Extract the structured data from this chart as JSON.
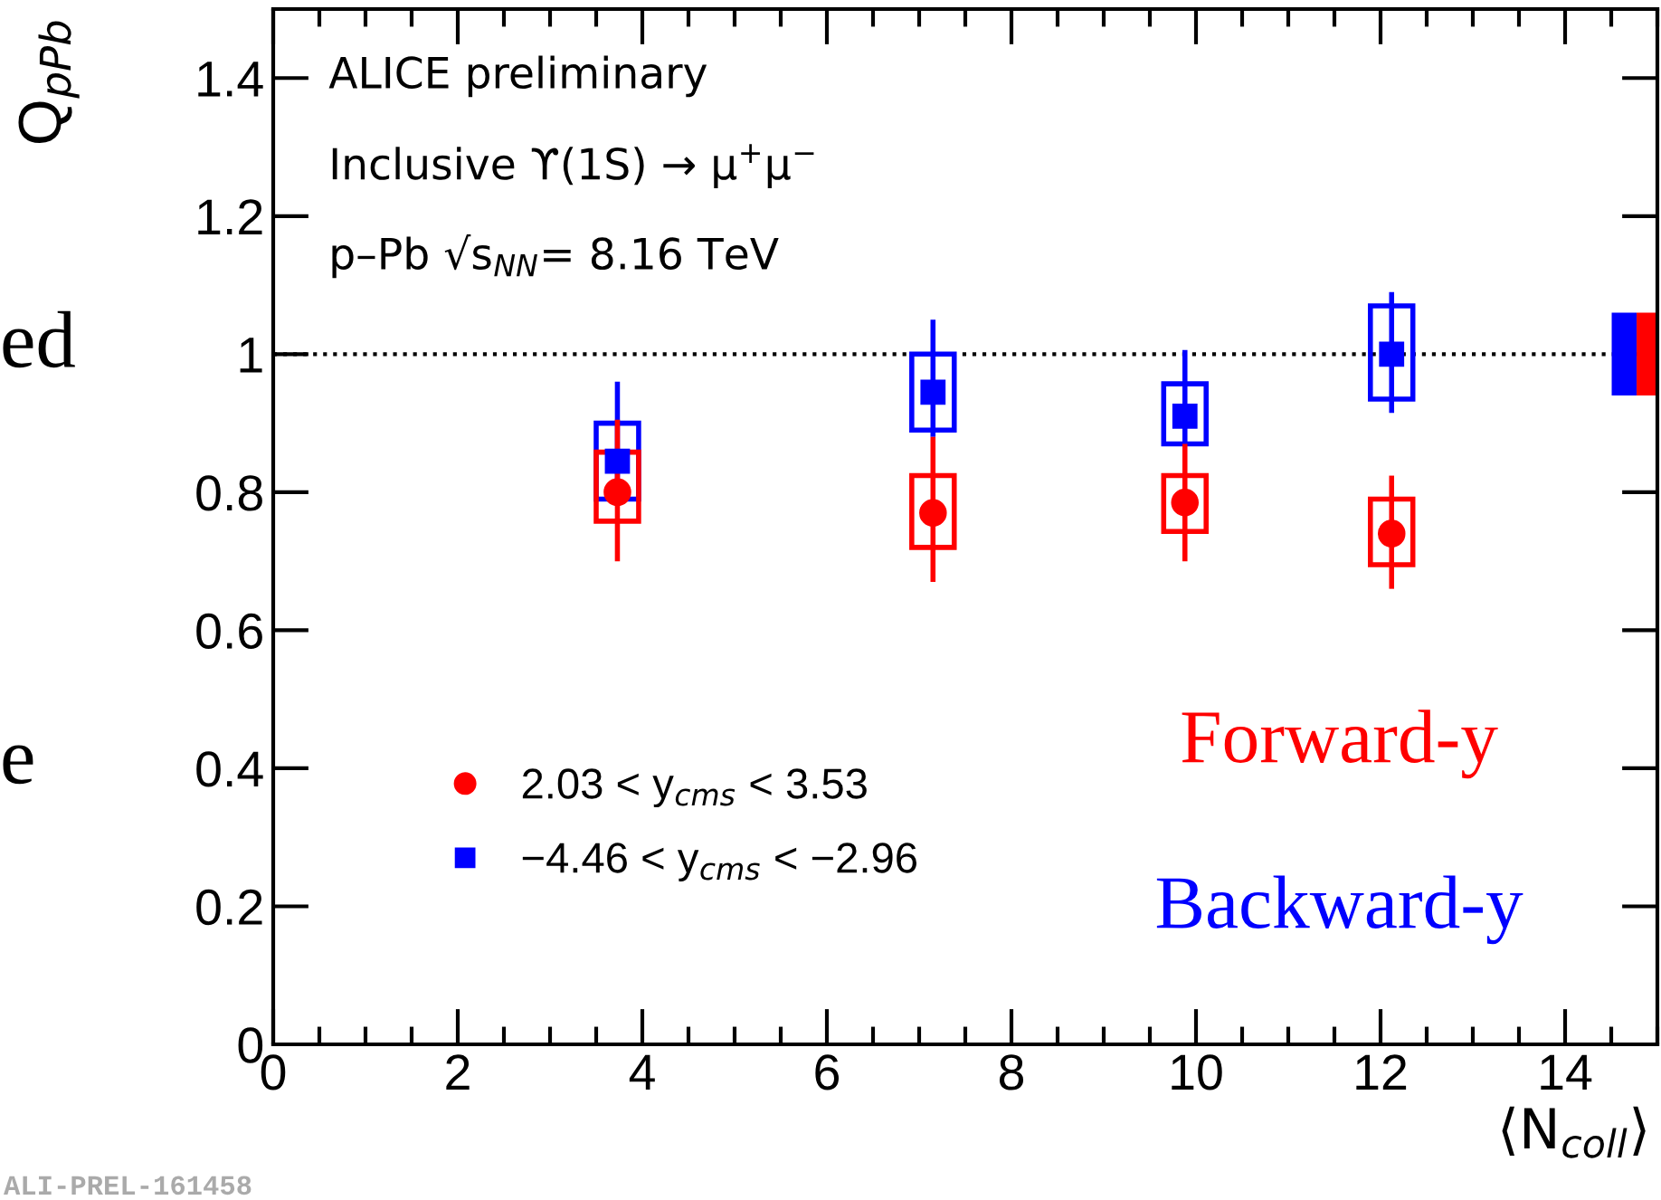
{
  "chart_data": {
    "type": "scatter",
    "ylabel": "Q$_{pPb}$",
    "xlabel": "⟨N$_{coll}$⟩",
    "xlim": [
      0,
      15
    ],
    "ylim": [
      0,
      1.5
    ],
    "xticks": [
      0,
      2,
      4,
      6,
      8,
      10,
      12,
      14
    ],
    "yticks": [
      0,
      0.2,
      0.4,
      0.6,
      0.8,
      1,
      1.2,
      1.4
    ],
    "series": [
      {
        "type": "bar",
        "color": "#ff0000",
        "x": [
          3.73,
          7.15,
          9.88,
          12.12
        ],
        "base": [
          0.758,
          0.72,
          0.743,
          0.695
        ],
        "values": [
          0.1,
          0.104,
          0.081,
          0.095
        ]
      },
      {
        "type": "bar",
        "color": "#0000ff",
        "x": [
          3.73,
          7.15,
          9.88,
          12.12
        ],
        "base": [
          0.79,
          0.89,
          0.87,
          0.935
        ],
        "values": [
          0.11,
          0.11,
          0.087,
          0.135
        ]
      },
      {
        "name": "2.03 < y$_{cms}$ < 3.53",
        "color": "#ff0000",
        "marker": "circle",
        "x": [
          3.73,
          7.15,
          9.88,
          12.12
        ],
        "values": [
          0.8,
          0.77,
          0.785,
          0.74
        ],
        "errors": [
          [
            0.7,
            0.905
          ],
          [
            0.67,
            0.88
          ],
          [
            0.7,
            0.87
          ],
          [
            0.66,
            0.824
          ]
        ]
      },
      {
        "name": "−4.46 < y$_{cms}$ < −2.96",
        "color": "#0000ff",
        "marker": "square",
        "x": [
          3.73,
          7.15,
          9.88,
          12.12
        ],
        "values": [
          0.845,
          0.945,
          0.91,
          1.0
        ],
        "errors": [
          [
            0.79,
            0.96
          ],
          [
            0.88,
            1.05
          ],
          [
            0.87,
            1.006
          ],
          [
            0.915,
            1.09
          ]
        ]
      },
      {
        "type": "bar",
        "color": "#0000ff",
        "x": [
          14.64
        ],
        "base": [
          0.94
        ],
        "values": [
          0.12
        ]
      },
      {
        "type": "bar",
        "color": "#ff0000",
        "x": [
          14.91
        ],
        "base": [
          0.94
        ],
        "values": [
          0.12
        ]
      }
    ],
    "ref_lines": [
      {
        "axis": "y",
        "value": 1,
        "color": "#000000",
        "line_style": "dotted"
      }
    ],
    "legend": "bottom left",
    "annotations": [
      "ALICE preliminary",
      "Inclusive ϒ(1S) → μ$^{+}$μ$^{−}$",
      "p–Pb √s$_{NN}$= 8.16 TeV",
      "Forward-y",
      "Backward-y",
      "ALI-PREL-161458",
      "ed",
      "e"
    ]
  }
}
